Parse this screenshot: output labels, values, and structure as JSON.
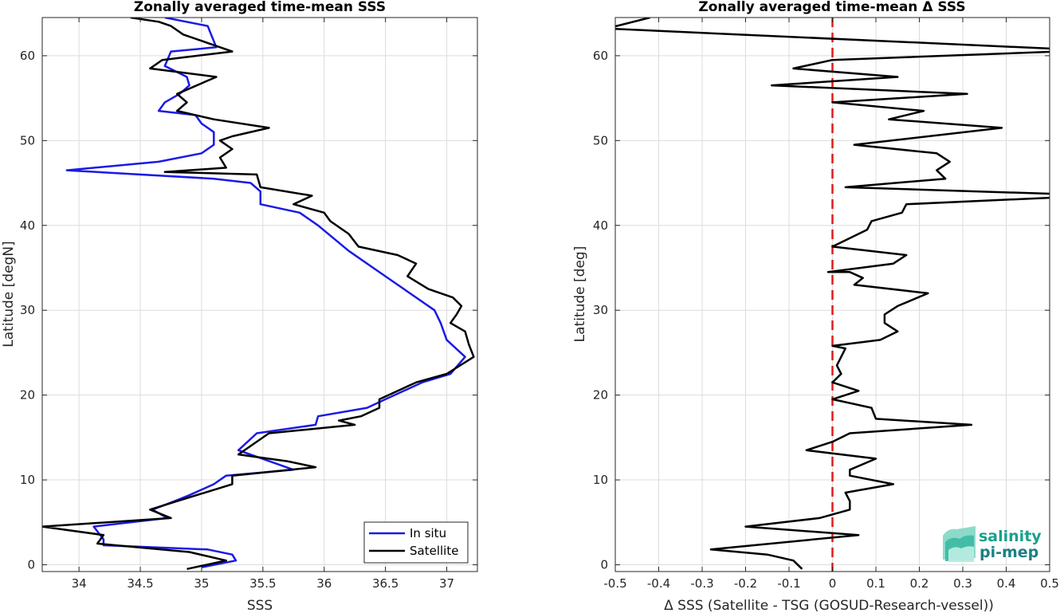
{
  "chart_data": [
    {
      "type": "line",
      "title": "Zonally averaged time-mean SSS",
      "xlabel": "SSS",
      "ylabel": "Latitude [degN]",
      "xlim": [
        33.7,
        37.25
      ],
      "ylim": [
        -0.8,
        64.5
      ],
      "xticks": [
        34,
        34.5,
        35,
        35.5,
        36,
        36.5,
        37
      ],
      "yticks": [
        0,
        10,
        20,
        30,
        40,
        50,
        60
      ],
      "grid": true,
      "legend_position": "bottom-right",
      "series": [
        {
          "name": "In situ",
          "color": "#1a1ae6",
          "points": [
            [
              35.0,
              -0.3
            ],
            [
              35.28,
              0.5
            ],
            [
              35.25,
              1.2
            ],
            [
              35.05,
              1.8
            ],
            [
              34.2,
              2.3
            ],
            [
              34.2,
              3.0
            ],
            [
              34.12,
              4.5
            ],
            [
              34.72,
              5.5
            ],
            [
              34.6,
              6.5
            ],
            [
              34.78,
              7.5
            ],
            [
              34.9,
              8.2
            ],
            [
              35.1,
              9.5
            ],
            [
              35.2,
              10.5
            ],
            [
              35.75,
              11.2
            ],
            [
              35.3,
              13.5
            ],
            [
              35.45,
              15.5
            ],
            [
              35.93,
              16.5
            ],
            [
              35.95,
              17.5
            ],
            [
              36.35,
              18.5
            ],
            [
              36.5,
              19.5
            ],
            [
              36.8,
              21.5
            ],
            [
              37.03,
              22.5
            ],
            [
              37.15,
              24.5
            ],
            [
              37.0,
              26.5
            ],
            [
              36.95,
              28.5
            ],
            [
              36.9,
              30.0
            ],
            [
              36.5,
              34.0
            ],
            [
              36.2,
              37.0
            ],
            [
              35.95,
              40.0
            ],
            [
              35.8,
              41.5
            ],
            [
              35.48,
              42.5
            ],
            [
              35.48,
              44.0
            ],
            [
              35.4,
              45.0
            ],
            [
              35.1,
              45.5
            ],
            [
              33.9,
              46.5
            ],
            [
              34.65,
              47.5
            ],
            [
              35.0,
              48.5
            ],
            [
              35.1,
              49.5
            ],
            [
              35.1,
              51.0
            ],
            [
              35.0,
              52.0
            ],
            [
              34.95,
              53.0
            ],
            [
              34.65,
              53.5
            ],
            [
              34.7,
              54.5
            ],
            [
              34.82,
              55.5
            ],
            [
              34.9,
              56.5
            ],
            [
              34.88,
              57.5
            ],
            [
              34.7,
              58.8
            ],
            [
              34.75,
              60.5
            ],
            [
              35.12,
              61.0
            ],
            [
              35.05,
              63.5
            ],
            [
              34.7,
              64.5
            ]
          ]
        },
        {
          "name": "Satellite",
          "color": "#000000",
          "points": [
            [
              34.88,
              -0.5
            ],
            [
              35.2,
              0.5
            ],
            [
              34.9,
              1.5
            ],
            [
              34.15,
              2.5
            ],
            [
              34.2,
              3.5
            ],
            [
              33.7,
              4.5
            ],
            [
              34.75,
              5.5
            ],
            [
              34.58,
              6.5
            ],
            [
              34.8,
              7.5
            ],
            [
              35.25,
              9.5
            ],
            [
              35.25,
              10.5
            ],
            [
              35.93,
              11.5
            ],
            [
              35.7,
              12.2
            ],
            [
              35.3,
              13.0
            ],
            [
              35.55,
              15.5
            ],
            [
              36.25,
              16.5
            ],
            [
              36.12,
              17.0
            ],
            [
              36.3,
              17.5
            ],
            [
              36.45,
              18.5
            ],
            [
              36.45,
              19.5
            ],
            [
              36.75,
              21.5
            ],
            [
              37.0,
              22.5
            ],
            [
              37.22,
              24.5
            ],
            [
              37.18,
              26.0
            ],
            [
              37.15,
              27.5
            ],
            [
              37.03,
              28.5
            ],
            [
              37.08,
              29.5
            ],
            [
              37.12,
              30.5
            ],
            [
              37.05,
              31.5
            ],
            [
              36.85,
              32.5
            ],
            [
              36.68,
              34.0
            ],
            [
              36.75,
              35.5
            ],
            [
              36.6,
              36.5
            ],
            [
              36.28,
              37.5
            ],
            [
              36.2,
              39.0
            ],
            [
              36.05,
              40.5
            ],
            [
              36.0,
              41.5
            ],
            [
              35.75,
              42.5
            ],
            [
              35.9,
              43.5
            ],
            [
              35.48,
              44.5
            ],
            [
              35.45,
              46.0
            ],
            [
              34.7,
              46.3
            ],
            [
              35.2,
              46.8
            ],
            [
              35.15,
              48.0
            ],
            [
              35.25,
              49.0
            ],
            [
              35.15,
              50.0
            ],
            [
              35.25,
              50.5
            ],
            [
              35.55,
              51.5
            ],
            [
              35.1,
              52.5
            ],
            [
              34.8,
              53.5
            ],
            [
              34.88,
              54.5
            ],
            [
              34.8,
              55.5
            ],
            [
              35.12,
              57.5
            ],
            [
              34.58,
              58.5
            ],
            [
              34.68,
              59.5
            ],
            [
              35.25,
              60.5
            ],
            [
              35.05,
              61.5
            ],
            [
              34.85,
              62.5
            ],
            [
              34.75,
              63.5
            ],
            [
              34.65,
              64.0
            ],
            [
              34.42,
              64.5
            ]
          ]
        }
      ]
    },
    {
      "type": "line",
      "title": "Zonally averaged time-mean Δ SSS",
      "xlabel": "Δ SSS (Satellite - TSG (GOSUD-Research-vessel))",
      "ylabel": "Latitude [deg]",
      "xlim": [
        -0.5,
        0.5
      ],
      "ylim": [
        -0.8,
        64.5
      ],
      "xticks": [
        -0.5,
        -0.4,
        -0.3,
        -0.2,
        -0.1,
        0,
        0.1,
        0.2,
        0.3,
        0.4,
        0.5
      ],
      "yticks": [
        0,
        10,
        20,
        30,
        40,
        50,
        60
      ],
      "grid": true,
      "reference_line": {
        "x": 0,
        "color": "#e01b1b",
        "style": "dashed"
      },
      "series": [
        {
          "color": "#000000",
          "points": [
            [
              -0.07,
              -0.5
            ],
            [
              -0.09,
              0.5
            ],
            [
              -0.15,
              1.2
            ],
            [
              -0.28,
              1.8
            ],
            [
              0.06,
              3.5
            ],
            [
              -0.2,
              4.5
            ],
            [
              -0.03,
              5.5
            ],
            [
              0.04,
              6.5
            ],
            [
              0.04,
              7.5
            ],
            [
              0.03,
              8.5
            ],
            [
              0.14,
              9.5
            ],
            [
              0.04,
              10.5
            ],
            [
              0.04,
              11.2
            ],
            [
              0.1,
              12.5
            ],
            [
              -0.06,
              13.5
            ],
            [
              0.0,
              14.5
            ],
            [
              0.04,
              15.5
            ],
            [
              0.32,
              16.5
            ],
            [
              0.1,
              17.2
            ],
            [
              0.09,
              18.5
            ],
            [
              0.0,
              19.5
            ],
            [
              0.06,
              20.5
            ],
            [
              0.0,
              21.5
            ],
            [
              0.02,
              22.5
            ],
            [
              0.01,
              23.5
            ],
            [
              0.02,
              24.5
            ],
            [
              0.03,
              25.5
            ],
            [
              0.0,
              25.8
            ],
            [
              0.11,
              26.5
            ],
            [
              0.15,
              27.5
            ],
            [
              0.12,
              28.5
            ],
            [
              0.12,
              29.5
            ],
            [
              0.15,
              30.5
            ],
            [
              0.22,
              32.0
            ],
            [
              0.05,
              33.0
            ],
            [
              0.07,
              33.8
            ],
            [
              0.04,
              34.5
            ],
            [
              -0.01,
              34.5
            ],
            [
              0.14,
              35.5
            ],
            [
              0.17,
              36.5
            ],
            [
              0.0,
              37.5
            ],
            [
              0.04,
              38.5
            ],
            [
              0.08,
              39.5
            ],
            [
              0.09,
              40.5
            ],
            [
              0.16,
              41.5
            ],
            [
              0.17,
              42.5
            ],
            [
              0.52,
              43.3
            ],
            [
              0.52,
              43.7
            ],
            [
              0.03,
              44.5
            ],
            [
              0.26,
              45.5
            ],
            [
              0.24,
              46.5
            ],
            [
              0.27,
              47.5
            ],
            [
              0.24,
              48.5
            ],
            [
              0.05,
              49.5
            ],
            [
              0.39,
              51.5
            ],
            [
              0.13,
              52.5
            ],
            [
              0.21,
              53.5
            ],
            [
              0.0,
              54.5
            ],
            [
              0.31,
              55.5
            ],
            [
              -0.14,
              56.5
            ],
            [
              0.15,
              57.5
            ],
            [
              -0.09,
              58.5
            ],
            [
              0.0,
              59.5
            ],
            [
              0.52,
              60.5
            ],
            [
              0.52,
              60.8
            ],
            [
              -0.52,
              63.2
            ],
            [
              -0.42,
              64.5
            ]
          ]
        }
      ]
    }
  ],
  "legend": {
    "in_situ": "In situ",
    "satellite": "Satellite"
  },
  "logo": {
    "line1": "salinity",
    "line2": "pi-mep",
    "color": "#1aa08c"
  }
}
